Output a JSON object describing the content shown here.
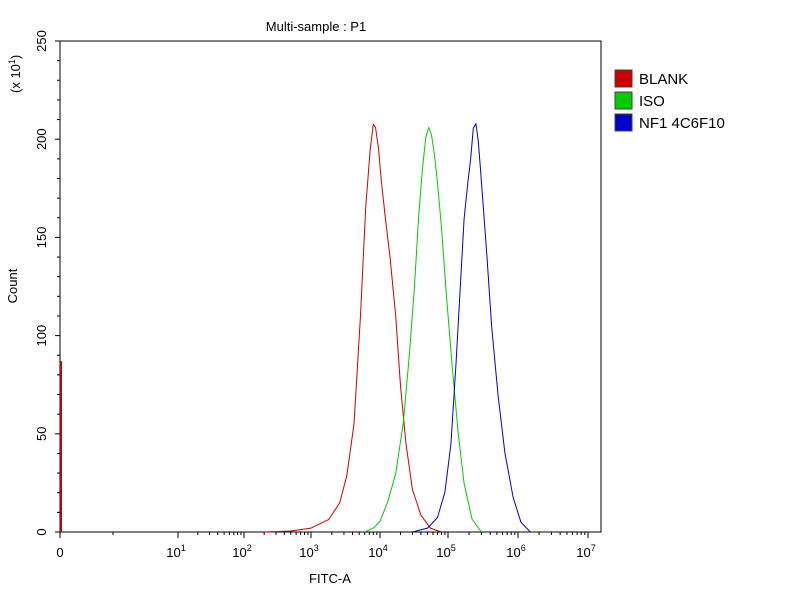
{
  "chart_data": {
    "type": "line",
    "title": "Multi-sample : P1",
    "xlabel": "FITC-A",
    "ylabel": "Count",
    "y_multiplier": "(x 10",
    "y_multiplier_exp": "1",
    "y_multiplier_close": ")",
    "x_scale": "biexponential",
    "xlim": [
      0,
      10000000
    ],
    "ylim": [
      0,
      250
    ],
    "x_ticks": [
      {
        "value": 0,
        "base": "0",
        "exp": ""
      },
      {
        "value": 10,
        "base": "10",
        "exp": "1"
      },
      {
        "value": 100,
        "base": "10",
        "exp": "2"
      },
      {
        "value": 1000,
        "base": "10",
        "exp": "3"
      },
      {
        "value": 10000,
        "base": "10",
        "exp": "4"
      },
      {
        "value": 100000,
        "base": "10",
        "exp": "5"
      },
      {
        "value": 1000000,
        "base": "10",
        "exp": "6"
      },
      {
        "value": 10000000,
        "base": "10",
        "exp": "7"
      }
    ],
    "y_ticks": [
      "0",
      "50",
      "100",
      "150",
      "200",
      "250"
    ],
    "legend_position": "right",
    "grid": false,
    "series": [
      {
        "name": "BLANK",
        "color": "#cc0000",
        "x": [
          200,
          500,
          1000,
          1800,
          2600,
          3300,
          4200,
          5200,
          6200,
          7200,
          8000,
          8600,
          9500,
          10500,
          12000,
          14000,
          17000,
          20000,
          24000,
          30000,
          40000,
          55000,
          80000
        ],
        "y": [
          0,
          0.5,
          2,
          6,
          15,
          28,
          55,
          110,
          165,
          195,
          207,
          206,
          196,
          178,
          160,
          140,
          110,
          75,
          45,
          22,
          8,
          2,
          0
        ]
      },
      {
        "name": "ISO",
        "color": "#00cc00",
        "x": [
          6000,
          8000,
          10000,
          13000,
          17000,
          22000,
          27000,
          32000,
          37000,
          42000,
          47000,
          52000,
          57000,
          63000,
          70000,
          80000,
          95000,
          115000,
          140000,
          170000,
          220000,
          300000
        ],
        "y": [
          0,
          2,
          6,
          15,
          30,
          55,
          90,
          125,
          160,
          185,
          200,
          206,
          203,
          192,
          178,
          155,
          120,
          85,
          50,
          25,
          6,
          0
        ]
      },
      {
        "name": "NF1 4C6F10",
        "color": "#0000cc",
        "x": [
          30000,
          50000,
          70000,
          90000,
          110000,
          130000,
          150000,
          170000,
          190000,
          210000,
          230000,
          250000,
          270000,
          290000,
          320000,
          360000,
          420000,
          520000,
          650000,
          850000,
          1100000,
          1500000
        ],
        "y": [
          0,
          2,
          8,
          20,
          45,
          85,
          125,
          160,
          176,
          190,
          205,
          208,
          200,
          185,
          165,
          140,
          105,
          70,
          40,
          18,
          5,
          0
        ]
      }
    ],
    "spikes": [
      {
        "series": "BLANK",
        "x": 0,
        "y": 87
      }
    ]
  }
}
